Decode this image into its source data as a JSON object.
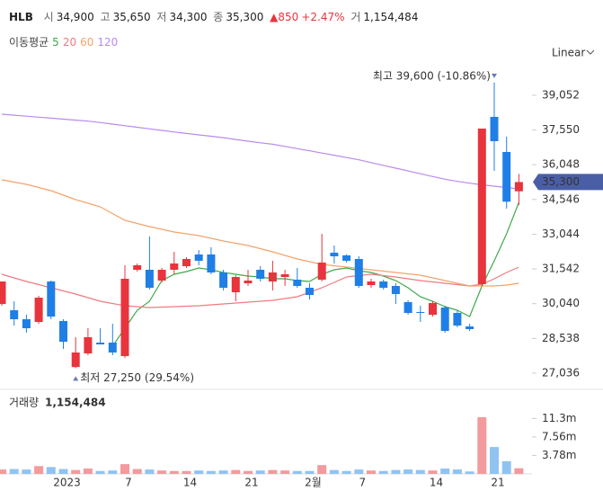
{
  "header": {
    "symbol": "HLB",
    "open_label": "시",
    "open": "34,900",
    "high_label": "고",
    "high": "35,650",
    "low_label": "저",
    "low": "34,300",
    "close_label": "종",
    "close": "35,300",
    "change": "850",
    "change_pct": "+2.47%",
    "volume_label": "거",
    "volume": "1,154,484"
  },
  "chart_data": {
    "type": "candlestick",
    "scale_label": "Linear",
    "moving_average_title": "이동평균",
    "categories": [
      null,
      null,
      null,
      null,
      null,
      "2023",
      null,
      null,
      null,
      null,
      "7",
      null,
      null,
      null,
      null,
      "14",
      null,
      null,
      null,
      null,
      "21",
      null,
      null,
      null,
      null,
      "2월",
      null,
      null,
      null,
      "7",
      null,
      null,
      null,
      null,
      null,
      "14",
      null,
      null,
      null,
      null,
      "21",
      null,
      null
    ],
    "open": [
      30028,
      29755,
      29367,
      29250,
      31000,
      29290,
      27300,
      27889,
      28356,
      28356,
      27772,
      31506,
      31506,
      31039,
      31506,
      31661,
      32167,
      32167,
      31389,
      30533,
      30922,
      31506,
      31000,
      31194,
      31078,
      30728,
      31078,
      32244,
      32128,
      31972,
      30844,
      31000,
      30806,
      30106,
      29678,
      29561,
      29872,
      29639,
      29056,
      30883,
      38117,
      36600,
      34900
    ],
    "high": [
      31000,
      30144,
      29561,
      30380,
      31039,
      29367,
      28589,
      28978,
      28978,
      29172,
      31700,
      31778,
      32944,
      31583,
      32283,
      32050,
      32361,
      32478,
      31506,
      31272,
      31506,
      31661,
      31894,
      31506,
      31583,
      30922,
      33061,
      32556,
      32167,
      32089,
      31117,
      31078,
      30922,
      30183,
      29950,
      30144,
      29950,
      29756,
      29172,
      37611,
      39600,
      37261,
      35650
    ],
    "low": [
      29950,
      29094,
      28783,
      29170,
      29367,
      28083,
      27250,
      27811,
      28278,
      27811,
      27694,
      31428,
      30650,
      30961,
      31311,
      31583,
      31700,
      31311,
      30611,
      30144,
      30806,
      31000,
      30611,
      30806,
      30728,
      30222,
      31000,
      31778,
      31817,
      30728,
      30728,
      30650,
      30028,
      29561,
      29250,
      29483,
      28783,
      29017,
      28861,
      30806,
      35783,
      34150,
      34300
    ],
    "close": [
      31000,
      29367,
      28978,
      30300,
      29483,
      28394,
      27928,
      28589,
      28278,
      27928,
      31117,
      31700,
      30728,
      31506,
      31778,
      31972,
      31894,
      31389,
      30728,
      31194,
      31039,
      31117,
      31389,
      31311,
      30806,
      30417,
      31817,
      32089,
      31894,
      30806,
      31000,
      30728,
      30456,
      29639,
      29639,
      30067,
      28861,
      29094,
      28939,
      37611,
      37067,
      34450,
      35300
    ],
    "up_color": "#e8343c",
    "down_color": "#1f7fe6",
    "ylim": [
      26450,
      40450
    ],
    "yticks": [
      {
        "value": 39052,
        "label": "39,052"
      },
      {
        "value": 37550,
        "label": "37,550"
      },
      {
        "value": 36048,
        "label": "36,048"
      },
      {
        "value": 34546,
        "label": "34,546"
      },
      {
        "value": 33044,
        "label": "33,044"
      },
      {
        "value": 31542,
        "label": "31,542"
      },
      {
        "value": 30040,
        "label": "30,040"
      },
      {
        "value": 28538,
        "label": "28,538"
      },
      {
        "value": 27036,
        "label": "27,036"
      }
    ],
    "series": [
      {
        "name": "5",
        "color": "#3faa4a",
        "values": [
          null,
          null,
          null,
          null,
          null,
          null,
          null,
          null,
          null,
          28200,
          28978,
          29756,
          30144,
          31039,
          31311,
          31428,
          31583,
          31506,
          31389,
          31311,
          31233,
          31194,
          31117,
          31117,
          31039,
          31000,
          31311,
          31506,
          31583,
          31467,
          31389,
          31233,
          31039,
          30728,
          30339,
          30144,
          29911,
          29756,
          29483,
          30806,
          31894,
          33061,
          34422
        ]
      },
      {
        "name": "20",
        "color": "#ef7b80",
        "values": [
          31311,
          31155,
          31000,
          30864,
          30728,
          30592,
          30456,
          30300,
          30144,
          30047,
          29950,
          29911,
          29872,
          29892,
          29911,
          29931,
          29950,
          29989,
          30028,
          30067,
          30106,
          30145,
          30183,
          30261,
          30339,
          30534,
          30728,
          30961,
          31194,
          31253,
          31311,
          31253,
          31194,
          31117,
          31039,
          30981,
          30922,
          30864,
          30806,
          30883,
          31117,
          31389,
          31622
        ]
      },
      {
        "name": "60",
        "color": "#f2a46c",
        "values": [
          35394,
          35297,
          35200,
          35064,
          34928,
          34734,
          34539,
          34384,
          34228,
          33936,
          33644,
          33508,
          33372,
          33256,
          33139,
          33061,
          32983,
          32867,
          32750,
          32653,
          32556,
          32420,
          32283,
          32128,
          31972,
          31856,
          31739,
          31681,
          31622,
          31564,
          31506,
          31448,
          31389,
          31331,
          31272,
          31156,
          31039,
          30922,
          30806,
          30806,
          30806,
          30844,
          30922
        ]
      },
      {
        "name": "120",
        "color": "#b98aee",
        "values": [
          38233,
          38190,
          38148,
          38105,
          38063,
          38020,
          37978,
          37935,
          37873,
          37805,
          37737,
          37668,
          37600,
          37532,
          37464,
          37400,
          37340,
          37280,
          37220,
          37140,
          37065,
          36995,
          36935,
          36840,
          36745,
          36650,
          36555,
          36460,
          36360,
          36260,
          36140,
          36020,
          35900,
          35780,
          35660,
          35540,
          35420,
          35330,
          35250,
          35180,
          35122,
          35060,
          35006
        ]
      }
    ],
    "high_annotation": "최고 39,600 (-10.86%)",
    "low_annotation": "최저 27,250 (29.54%)",
    "annotation_color": "#6a7bb8",
    "last_price_label": "35,300",
    "last_price_color": "#4a5ea6",
    "volume": {
      "title": "거래량",
      "value_label": "1,154,484",
      "values": [
        900000,
        1000000,
        900000,
        1600000,
        1400000,
        1000000,
        800000,
        1100000,
        600000,
        700000,
        2000000,
        1000000,
        900000,
        700000,
        600000,
        600000,
        700000,
        600000,
        700000,
        800000,
        600000,
        700000,
        800000,
        700000,
        600000,
        600000,
        1800000,
        800000,
        600000,
        900000,
        700000,
        600000,
        800000,
        900000,
        800000,
        700000,
        1100000,
        900000,
        500000,
        11600000,
        5500000,
        2600000,
        1154484
      ],
      "up_color": "#f29a9d",
      "down_color": "#8fc3f2",
      "ylim": [
        0,
        16000000
      ],
      "yticks": [
        {
          "value": 11340000,
          "label": "11.3m"
        },
        {
          "value": 7560000,
          "label": "7.56m"
        },
        {
          "value": 3780000,
          "label": "3.78m"
        }
      ]
    }
  }
}
